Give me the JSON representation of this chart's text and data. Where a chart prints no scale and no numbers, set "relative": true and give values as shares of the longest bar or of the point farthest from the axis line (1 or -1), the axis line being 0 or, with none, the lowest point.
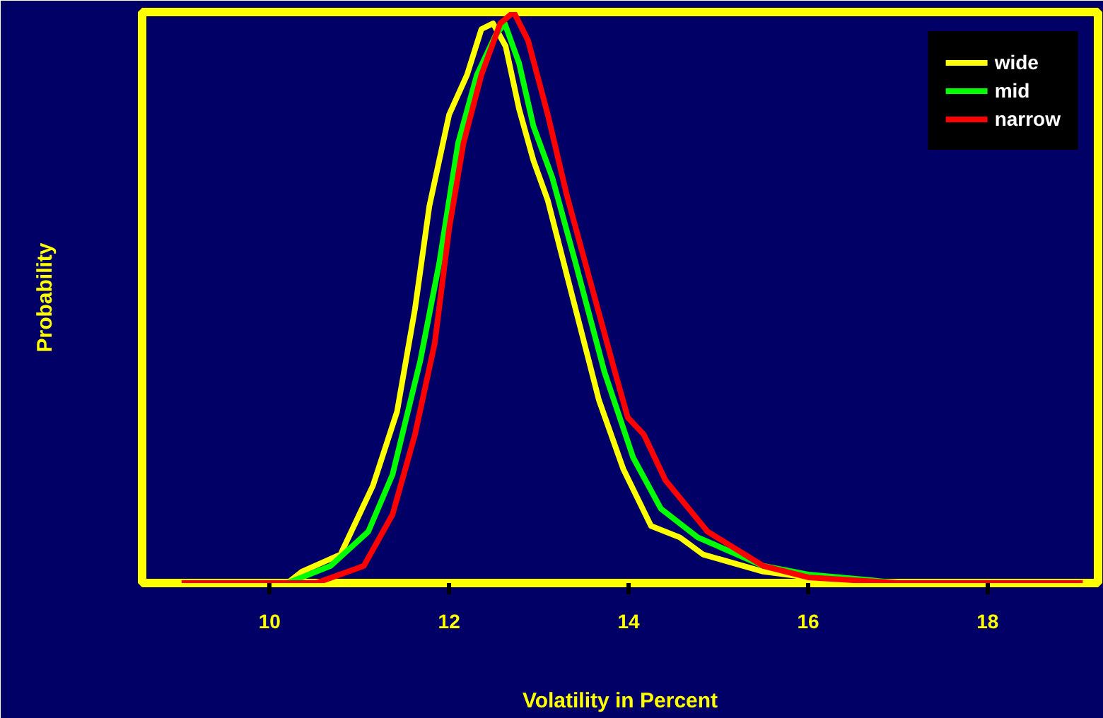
{
  "chart_data": {
    "type": "line",
    "xlabel": "Volatility in Percent",
    "ylabel": "Probability",
    "relative": true,
    "xlim": [
      8.58,
      19.23
    ],
    "xticks": [
      10,
      12,
      14,
      16,
      18
    ],
    "grid": false,
    "legend": "top right",
    "marker": "none",
    "line_style": "solid",
    "series": [
      {
        "name": "wide",
        "color": "#ffff00",
        "x": [
          10.2,
          10.36,
          10.79,
          11.15,
          11.42,
          11.62,
          11.78,
          12.0,
          12.2,
          12.36,
          12.49,
          12.63,
          12.78,
          12.94,
          13.1,
          13.36,
          13.67,
          13.94,
          14.25,
          14.57,
          14.83,
          15.5,
          16.0,
          16.7
        ],
        "values": [
          0,
          0.02,
          0.05,
          0.17,
          0.3,
          0.48,
          0.66,
          0.82,
          0.89,
          0.97,
          0.98,
          0.94,
          0.83,
          0.74,
          0.67,
          0.51,
          0.32,
          0.2,
          0.1,
          0.08,
          0.05,
          0.02,
          0.01,
          0
        ]
      },
      {
        "name": "mid",
        "color": "#00ff00",
        "x": [
          10.2,
          10.68,
          11.1,
          11.37,
          11.68,
          11.89,
          12.1,
          12.31,
          12.52,
          12.62,
          12.78,
          12.94,
          13.15,
          13.41,
          13.73,
          14.05,
          14.36,
          14.77,
          15.5,
          16.0,
          16.7,
          17.0
        ],
        "values": [
          0,
          0.03,
          0.09,
          0.19,
          0.39,
          0.56,
          0.77,
          0.89,
          0.96,
          0.98,
          0.91,
          0.8,
          0.71,
          0.56,
          0.37,
          0.22,
          0.13,
          0.08,
          0.03,
          0.015,
          0.005,
          0
        ]
      },
      {
        "name": "narrow",
        "color": "#ff0000",
        "x": [
          9.02,
          10.52,
          11.05,
          11.37,
          11.62,
          11.84,
          12.0,
          12.16,
          12.36,
          12.57,
          12.72,
          12.88,
          13.1,
          13.31,
          13.57,
          13.83,
          13.99,
          14.17,
          14.41,
          14.88,
          15.5,
          16.0,
          17.0,
          19.06
        ],
        "values": [
          0,
          0,
          0.03,
          0.12,
          0.26,
          0.42,
          0.62,
          0.77,
          0.89,
          0.98,
          1.0,
          0.95,
          0.82,
          0.68,
          0.53,
          0.38,
          0.29,
          0.26,
          0.18,
          0.09,
          0.03,
          0.01,
          0,
          0
        ]
      }
    ]
  }
}
